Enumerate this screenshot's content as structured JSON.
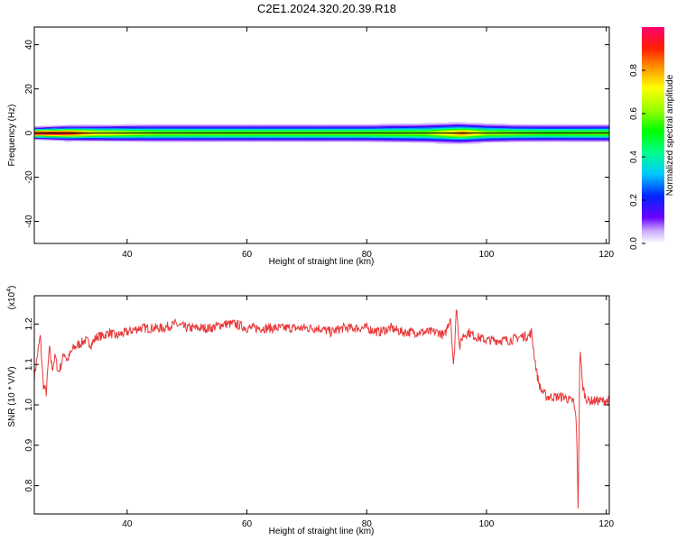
{
  "title": "C2E1.2024.320.20.39.R18",
  "chart_data": [
    {
      "type": "heatmap",
      "title": "",
      "xlabel": "Height of straight line (km)",
      "ylabel": "Frequency (Hz)",
      "xlim": [
        24.5,
        120.5
      ],
      "ylim": [
        -50,
        48
      ],
      "xticks": [
        40,
        60,
        80,
        100,
        120
      ],
      "yticks": [
        -40,
        -20,
        0,
        20,
        40
      ],
      "grid": false,
      "band": {
        "center_hz": 0,
        "description_width_hz": [
          {
            "x": 25,
            "half_width": 2.5
          },
          {
            "x": 30,
            "half_width": 3
          },
          {
            "x": 45,
            "half_width": 3.5
          },
          {
            "x": 60,
            "half_width": 3.5
          },
          {
            "x": 80,
            "half_width": 3.5
          },
          {
            "x": 95,
            "half_width": 4
          },
          {
            "x": 105,
            "half_width": 3.5
          },
          {
            "x": 120,
            "half_width": 3.5
          }
        ],
        "peak_amplitude": [
          {
            "x": 25,
            "a": 0.98
          },
          {
            "x": 30,
            "a": 0.95
          },
          {
            "x": 35,
            "a": 0.75
          },
          {
            "x": 45,
            "a": 0.62
          },
          {
            "x": 60,
            "a": 0.6
          },
          {
            "x": 80,
            "a": 0.6
          },
          {
            "x": 90,
            "a": 0.62
          },
          {
            "x": 96,
            "a": 0.85
          },
          {
            "x": 100,
            "a": 0.65
          },
          {
            "x": 110,
            "a": 0.58
          },
          {
            "x": 120,
            "a": 0.6
          }
        ]
      },
      "colorbar": {
        "label": "Normalized spectral amplitude",
        "range": [
          0,
          1
        ],
        "ticks": [
          "0.0",
          "0.2",
          "0.4",
          "0.6",
          "0.8"
        ]
      }
    },
    {
      "type": "line",
      "title": "",
      "xlabel": "Height of straight line (km)",
      "ylabel": "SNR (10 * V/V)",
      "scale_label_base": "(x10",
      "scale_label_exp": "4",
      "scale_label_end": ")",
      "xlim": [
        24.5,
        120.5
      ],
      "ylim": [
        0.73,
        1.27
      ],
      "xticks": [
        40,
        60,
        80,
        100,
        120
      ],
      "yticks": [
        "0.8",
        "0.9",
        "1.0",
        "1.1",
        "1.2"
      ],
      "color": "#e8393a",
      "series": [
        {
          "x": [
            24.5,
            25,
            25.5,
            26,
            26.5,
            27,
            27.5,
            28,
            28.5,
            29,
            29.5,
            30,
            31,
            32,
            33,
            34,
            35,
            36,
            37,
            38,
            40,
            42,
            44,
            46,
            48,
            50,
            52,
            54,
            56,
            58,
            60,
            62,
            64,
            66,
            68,
            70,
            72,
            74,
            76,
            78,
            80,
            82,
            84,
            86,
            88,
            90,
            92,
            93,
            94,
            94.5,
            95,
            95.5,
            96,
            97,
            98,
            100,
            102,
            104,
            106,
            107,
            107.5,
            108,
            108.5,
            109,
            110,
            111,
            112,
            113,
            114,
            114.5,
            115,
            115.3,
            115.6,
            116,
            116.5,
            117,
            118,
            119,
            120,
            120.5
          ],
          "values": [
            1.07,
            1.12,
            1.17,
            1.05,
            1.03,
            1.14,
            1.09,
            1.12,
            1.08,
            1.1,
            1.13,
            1.11,
            1.14,
            1.15,
            1.16,
            1.15,
            1.17,
            1.17,
            1.18,
            1.17,
            1.18,
            1.19,
            1.19,
            1.19,
            1.2,
            1.19,
            1.19,
            1.19,
            1.2,
            1.2,
            1.19,
            1.19,
            1.19,
            1.19,
            1.19,
            1.19,
            1.19,
            1.18,
            1.19,
            1.19,
            1.19,
            1.18,
            1.19,
            1.18,
            1.18,
            1.18,
            1.18,
            1.17,
            1.22,
            1.09,
            1.25,
            1.14,
            1.17,
            1.18,
            1.17,
            1.16,
            1.16,
            1.16,
            1.17,
            1.17,
            1.18,
            1.12,
            1.07,
            1.04,
            1.02,
            1.02,
            1.02,
            1.02,
            1.01,
            1.01,
            0.96,
            0.74,
            1.15,
            1.05,
            1.02,
            1.01,
            1.01,
            1.01,
            1.01,
            1.01
          ],
          "noise": 0.012
        }
      ]
    }
  ]
}
